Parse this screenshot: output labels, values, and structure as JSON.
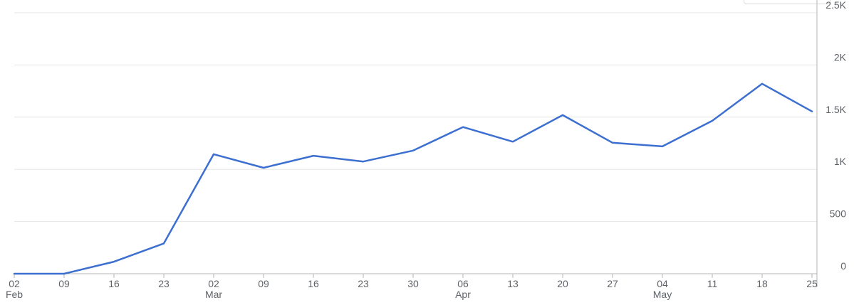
{
  "chart_data": {
    "type": "line",
    "title": "",
    "xlabel": "",
    "ylabel": "",
    "x": [
      "2025-02-02",
      "2025-02-09",
      "2025-02-16",
      "2025-02-23",
      "2025-03-02",
      "2025-03-09",
      "2025-03-16",
      "2025-03-23",
      "2025-03-30",
      "2025-04-06",
      "2025-04-13",
      "2025-04-20",
      "2025-04-27",
      "2025-05-04",
      "2025-05-11",
      "2025-05-18",
      "2025-05-25"
    ],
    "x_tick_labels": [
      {
        "day": "02",
        "month": "Feb"
      },
      {
        "day": "09",
        "month": ""
      },
      {
        "day": "16",
        "month": ""
      },
      {
        "day": "23",
        "month": ""
      },
      {
        "day": "02",
        "month": "Mar"
      },
      {
        "day": "09",
        "month": ""
      },
      {
        "day": "16",
        "month": ""
      },
      {
        "day": "23",
        "month": ""
      },
      {
        "day": "30",
        "month": ""
      },
      {
        "day": "06",
        "month": "Apr"
      },
      {
        "day": "13",
        "month": ""
      },
      {
        "day": "20",
        "month": ""
      },
      {
        "day": "27",
        "month": ""
      },
      {
        "day": "04",
        "month": "May"
      },
      {
        "day": "11",
        "month": ""
      },
      {
        "day": "18",
        "month": ""
      },
      {
        "day": "25",
        "month": ""
      }
    ],
    "series": [
      {
        "values": [
          0,
          0,
          115,
          290,
          1145,
          1015,
          1130,
          1075,
          1180,
          1405,
          1265,
          1520,
          1255,
          1220,
          1465,
          1820,
          1555
        ],
        "color": "#3c6fd0"
      }
    ],
    "ylim": [
      0,
      2500
    ],
    "y_ticks": [
      0,
      500,
      1000,
      1500,
      2000,
      2500
    ],
    "y_tick_labels": [
      "0",
      "500",
      "1K",
      "1.5K",
      "2K",
      "2.5K"
    ],
    "y_axis_side": "right",
    "grid": true,
    "legend": "none",
    "colors": {
      "line": "#3c6fd0",
      "grid": "#e6e6e6",
      "baseline": "#b5b5b5",
      "text": "#5f6368"
    }
  }
}
